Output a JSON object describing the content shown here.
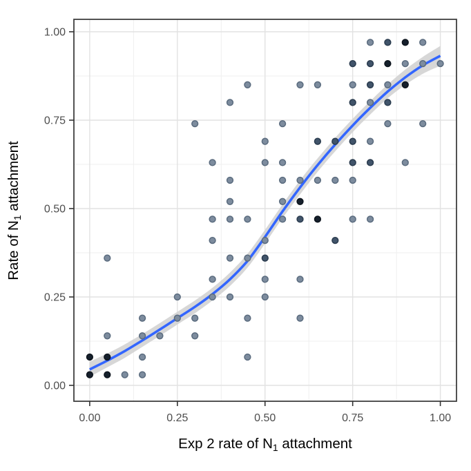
{
  "chart_data": {
    "type": "scatter",
    "title": "",
    "xlabel": "Exp 2 rate of N₁ attachment",
    "ylabel": "Rate of N₁ attachment",
    "xlabel_parts": {
      "pre": "Exp 2 rate of N",
      "sub": "1",
      "post": " attachment"
    },
    "ylabel_parts": {
      "pre": "Rate of N",
      "sub": "1",
      "post": " attachment"
    },
    "xlim": [
      0,
      1
    ],
    "ylim": [
      0,
      1
    ],
    "grid": true,
    "legend_position": "none",
    "x_ticks": {
      "values": [
        0,
        0.25,
        0.5,
        0.75,
        1
      ],
      "labels": [
        "0.00",
        "0.25",
        "0.50",
        "0.75",
        "1.00"
      ]
    },
    "y_ticks": {
      "values": [
        0,
        0.25,
        0.5,
        0.75,
        1
      ],
      "labels": [
        "0.00",
        "0.25",
        "0.50",
        "0.75",
        "1.00"
      ]
    },
    "x_minor_ticks": [
      0.125,
      0.375,
      0.625,
      0.875
    ],
    "y_minor_ticks": [
      0.125,
      0.375,
      0.625,
      0.875
    ],
    "points": [
      [
        0.0,
        0.03,
        3
      ],
      [
        0.05,
        0.03,
        3
      ],
      [
        0.1,
        0.03,
        1
      ],
      [
        0.15,
        0.03,
        1
      ],
      [
        0.0,
        0.08,
        3
      ],
      [
        0.05,
        0.08,
        3
      ],
      [
        0.15,
        0.08,
        1
      ],
      [
        0.45,
        0.08,
        1
      ],
      [
        0.05,
        0.14,
        1
      ],
      [
        0.15,
        0.14,
        1
      ],
      [
        0.2,
        0.14,
        1
      ],
      [
        0.3,
        0.14,
        1
      ],
      [
        0.15,
        0.19,
        1
      ],
      [
        0.25,
        0.19,
        1
      ],
      [
        0.3,
        0.19,
        1
      ],
      [
        0.45,
        0.19,
        1
      ],
      [
        0.6,
        0.19,
        1
      ],
      [
        0.25,
        0.25,
        1
      ],
      [
        0.35,
        0.25,
        1
      ],
      [
        0.4,
        0.25,
        1
      ],
      [
        0.5,
        0.25,
        1
      ],
      [
        0.35,
        0.3,
        1
      ],
      [
        0.5,
        0.3,
        1
      ],
      [
        0.6,
        0.3,
        1
      ],
      [
        0.05,
        0.36,
        1
      ],
      [
        0.4,
        0.36,
        1
      ],
      [
        0.45,
        0.36,
        1
      ],
      [
        0.5,
        0.36,
        2
      ],
      [
        0.35,
        0.41,
        1
      ],
      [
        0.5,
        0.41,
        1
      ],
      [
        0.7,
        0.41,
        2
      ],
      [
        0.35,
        0.47,
        1
      ],
      [
        0.4,
        0.47,
        1
      ],
      [
        0.45,
        0.47,
        1
      ],
      [
        0.55,
        0.47,
        1
      ],
      [
        0.6,
        0.47,
        2
      ],
      [
        0.65,
        0.47,
        3
      ],
      [
        0.75,
        0.47,
        1
      ],
      [
        0.8,
        0.47,
        1
      ],
      [
        0.4,
        0.52,
        1
      ],
      [
        0.55,
        0.52,
        1
      ],
      [
        0.6,
        0.52,
        3
      ],
      [
        0.4,
        0.58,
        1
      ],
      [
        0.55,
        0.58,
        1
      ],
      [
        0.6,
        0.58,
        1
      ],
      [
        0.65,
        0.58,
        1
      ],
      [
        0.7,
        0.58,
        1
      ],
      [
        0.75,
        0.58,
        1
      ],
      [
        0.35,
        0.63,
        1
      ],
      [
        0.5,
        0.63,
        1
      ],
      [
        0.55,
        0.63,
        1
      ],
      [
        0.75,
        0.63,
        2
      ],
      [
        0.8,
        0.63,
        2
      ],
      [
        0.9,
        0.63,
        1
      ],
      [
        0.5,
        0.69,
        1
      ],
      [
        0.65,
        0.69,
        2
      ],
      [
        0.7,
        0.69,
        2
      ],
      [
        0.75,
        0.69,
        2
      ],
      [
        0.8,
        0.69,
        1
      ],
      [
        0.3,
        0.74,
        1
      ],
      [
        0.55,
        0.74,
        1
      ],
      [
        0.85,
        0.74,
        1
      ],
      [
        0.95,
        0.74,
        1
      ],
      [
        0.4,
        0.8,
        1
      ],
      [
        0.75,
        0.8,
        2
      ],
      [
        0.8,
        0.8,
        1
      ],
      [
        0.85,
        0.8,
        2
      ],
      [
        0.45,
        0.85,
        1
      ],
      [
        0.6,
        0.85,
        1
      ],
      [
        0.65,
        0.85,
        1
      ],
      [
        0.75,
        0.85,
        1
      ],
      [
        0.8,
        0.85,
        2
      ],
      [
        0.85,
        0.85,
        1
      ],
      [
        0.9,
        0.85,
        3
      ],
      [
        0.75,
        0.91,
        2
      ],
      [
        0.8,
        0.91,
        2
      ],
      [
        0.85,
        0.91,
        3
      ],
      [
        0.9,
        0.91,
        1
      ],
      [
        0.95,
        0.91,
        1
      ],
      [
        1.0,
        0.91,
        1
      ],
      [
        0.8,
        0.97,
        1
      ],
      [
        0.85,
        0.97,
        2
      ],
      [
        0.9,
        0.97,
        3
      ],
      [
        0.95,
        0.97,
        1
      ]
    ],
    "smooth_line": {
      "x": [
        0,
        0.05,
        0.1,
        0.15,
        0.2,
        0.25,
        0.3,
        0.35,
        0.4,
        0.45,
        0.5,
        0.55,
        0.6,
        0.65,
        0.7,
        0.75,
        0.8,
        0.85,
        0.9,
        0.95,
        1.0
      ],
      "y": [
        0.045,
        0.07,
        0.097,
        0.127,
        0.158,
        0.19,
        0.222,
        0.258,
        0.3,
        0.352,
        0.42,
        0.492,
        0.56,
        0.623,
        0.681,
        0.735,
        0.785,
        0.831,
        0.871,
        0.905,
        0.932
      ]
    },
    "ci_band": {
      "x": [
        0,
        0.05,
        0.1,
        0.15,
        0.2,
        0.25,
        0.3,
        0.35,
        0.4,
        0.45,
        0.5,
        0.55,
        0.6,
        0.65,
        0.7,
        0.75,
        0.8,
        0.85,
        0.9,
        0.95,
        1.0
      ],
      "upper": [
        0.067,
        0.09,
        0.116,
        0.145,
        0.176,
        0.208,
        0.24,
        0.276,
        0.319,
        0.372,
        0.44,
        0.512,
        0.58,
        0.642,
        0.7,
        0.754,
        0.804,
        0.851,
        0.893,
        0.929,
        0.96
      ],
      "lower": [
        0.024,
        0.051,
        0.078,
        0.109,
        0.14,
        0.172,
        0.204,
        0.24,
        0.281,
        0.333,
        0.401,
        0.473,
        0.54,
        0.604,
        0.662,
        0.716,
        0.766,
        0.812,
        0.85,
        0.881,
        0.904
      ]
    }
  },
  "colors": {
    "background": "#FFFFFF",
    "smooth_line": "#3366FF",
    "ci_band": "#D2D2D2",
    "point_fill_1": "#7D8C9E",
    "point_stroke_1": "#5A6B7E",
    "point_fill_2": "#41546A",
    "point_stroke_2": "#2A3B4E",
    "point_fill_3": "#16202C",
    "point_stroke_3": "#0D141D",
    "grid_major": "#E2E2E2",
    "grid_minor": "#EFEFEF",
    "panel_border": "#3F3F3F",
    "tick_mark": "#333333",
    "tick_label": "#4D4D4D",
    "axis_title": "#000000"
  }
}
